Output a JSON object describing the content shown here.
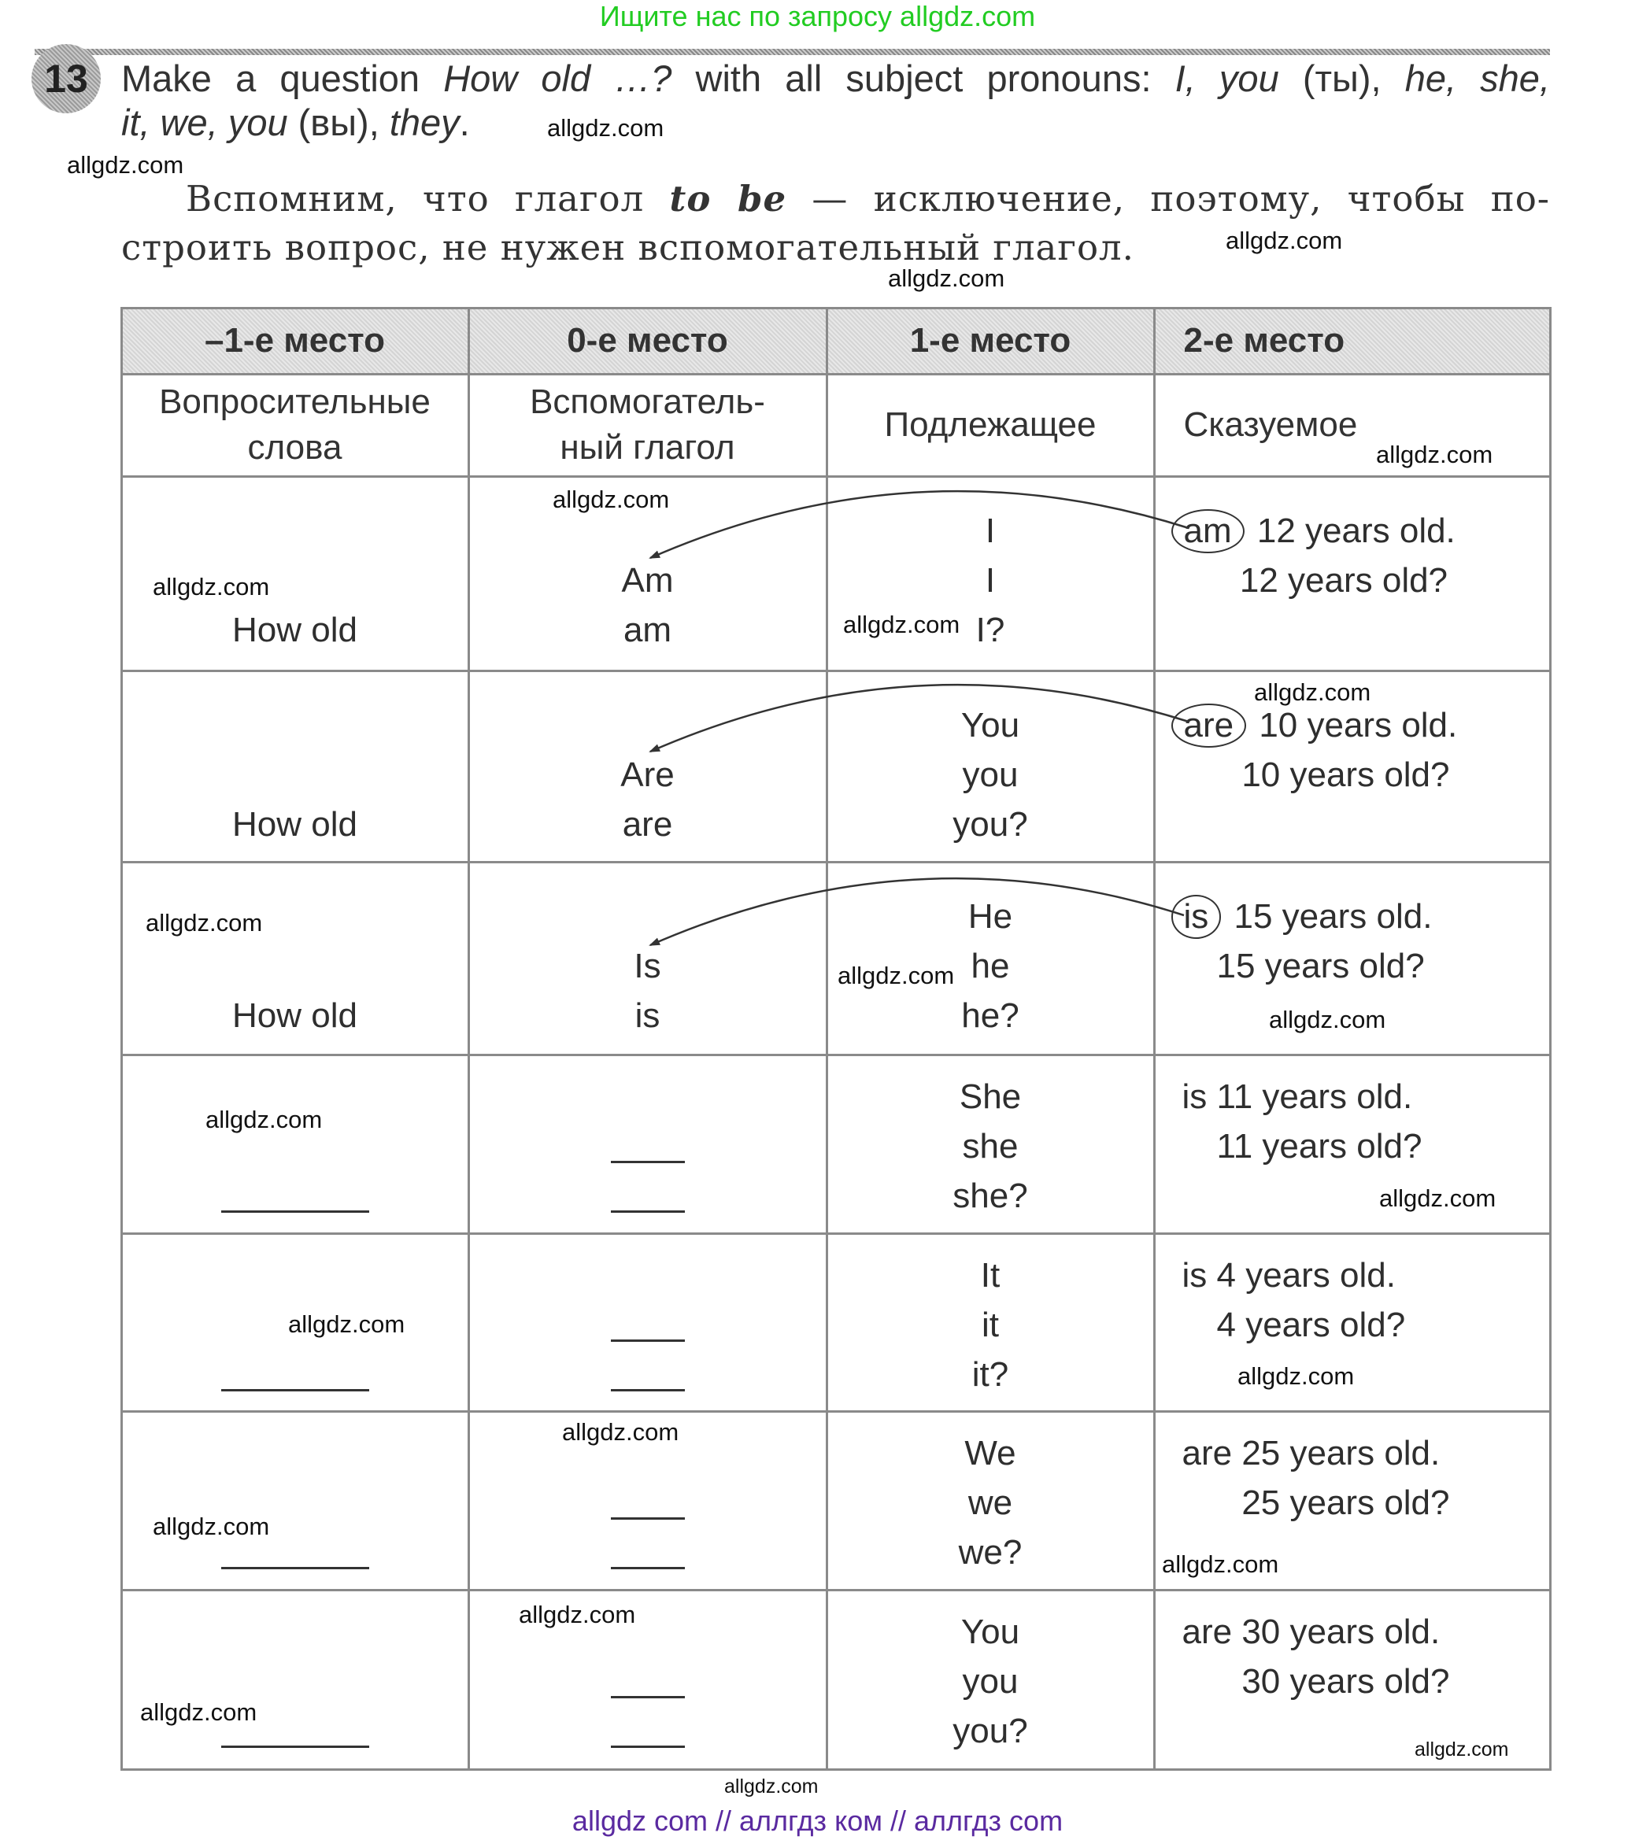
{
  "banner": "Ищите нас по запросу allgdz.com",
  "exercise": {
    "number": "13",
    "task_line1": [
      "Make a question ",
      "How old …?",
      " with all subject pronouns: ",
      "I, you",
      " (ты), ",
      "he, she,"
    ],
    "task_line2": [
      "it, we, you",
      " (вы), ",
      "they",
      "."
    ],
    "note_before": "Вспомним, что глагол ",
    "note_bold": "to be",
    "note_after1": " — исключение, поэтому, чтобы по-",
    "note_line2": "строить вопрос, не нужен вспомогательный глагол."
  },
  "table": {
    "headers": [
      "–1-е место",
      "0-е место",
      "1-е место",
      "2-е место"
    ],
    "subheaders": [
      [
        "Вопросительные",
        "слова"
      ],
      [
        "Вспомогатель-",
        "ный глагол"
      ],
      [
        "Подлежащее"
      ],
      [
        "Сказуемое"
      ]
    ],
    "rows": [
      {
        "question": "How old",
        "auxiliary": [
          "Am",
          "am"
        ],
        "subject": [
          "I",
          "I",
          "I?"
        ],
        "verb": "am",
        "circled": true,
        "predicate": [
          "12 years old.",
          "12 years old?"
        ]
      },
      {
        "question": "How old",
        "auxiliary": [
          "Are",
          "are"
        ],
        "subject": [
          "You",
          "you",
          "you?"
        ],
        "verb": "are",
        "circled": true,
        "predicate": [
          "10 years old.",
          "10 years old?"
        ]
      },
      {
        "question": "How old",
        "auxiliary": [
          "Is",
          "is"
        ],
        "subject": [
          "He",
          "he",
          "he?"
        ],
        "verb": "is",
        "circled": true,
        "predicate": [
          "15 years old.",
          "15 years old?"
        ]
      },
      {
        "question": "",
        "auxiliary": [],
        "subject": [
          "She",
          "she",
          "she?"
        ],
        "verb": "is",
        "circled": false,
        "predicate": [
          "11 years old.",
          "11 years old?"
        ]
      },
      {
        "question": "",
        "auxiliary": [],
        "subject": [
          "It",
          "it",
          "it?"
        ],
        "verb": "is",
        "circled": false,
        "predicate": [
          "4 years old.",
          "4 years old?"
        ]
      },
      {
        "question": "",
        "auxiliary": [],
        "subject": [
          "We",
          "we",
          "we?"
        ],
        "verb": "are",
        "circled": false,
        "predicate": [
          "25 years old.",
          "25 years old?"
        ]
      },
      {
        "question": "",
        "auxiliary": [],
        "subject": [
          "You",
          "you",
          "you?"
        ],
        "verb": "are",
        "circled": false,
        "predicate": [
          "30 years old.",
          "30 years old?"
        ]
      }
    ]
  },
  "watermarks": [
    "allgdz.com",
    "allgdz.com",
    "allgdz.com",
    "allgdz.com",
    "allgdz.com",
    "allgdz.com",
    "allgdz.com",
    "allgdz.com",
    "allgdz.com",
    "allgdz.com",
    "allgdz.com",
    "allgdz.com",
    "allgdz.com",
    "allgdz.com",
    "allgdz.com",
    "allgdz.com",
    "allgdz.com",
    "allgdz.com",
    "allgdz.com",
    "allgdz.com",
    "allgdz.com",
    "allgdz.com",
    "allgdz.com"
  ],
  "footer": "allgdz com  //  аллгдз ком  //  аллгдз com",
  "colors": {
    "banner": "#22cc22",
    "footer": "#5a2aa0",
    "header_fill": "#dddddd",
    "border": "#8a8a8a"
  }
}
